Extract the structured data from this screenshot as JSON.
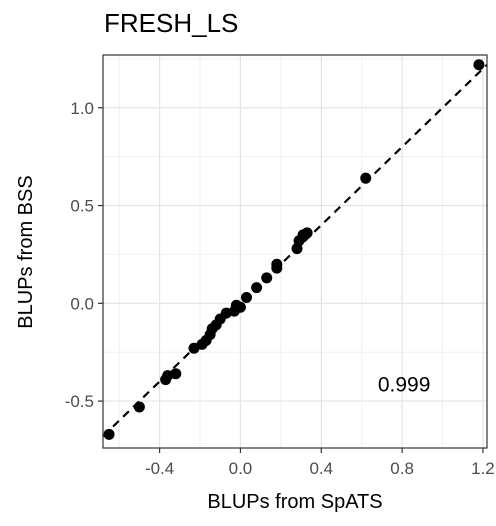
{
  "chart_data": {
    "type": "scatter",
    "title": "FRESH_LS",
    "xlabel": "BLUPs from SpATS",
    "ylabel": "BLUPs from BSS",
    "xlim": [
      -0.68,
      1.22
    ],
    "ylim": [
      -0.74,
      1.27
    ],
    "xticks": [
      -0.4,
      0.0,
      0.4,
      0.8,
      1.2
    ],
    "xtick_labels": [
      "-0.4",
      "0.0",
      "0.4",
      "0.8",
      "1.2"
    ],
    "yticks": [
      -0.5,
      0.0,
      0.5,
      1.0
    ],
    "ytick_labels": [
      "-0.5",
      "0.0",
      "0.5",
      "1.0"
    ],
    "grid": true,
    "reference_line": {
      "style": "dashed",
      "slope": 1,
      "intercept": 0
    },
    "annotation": {
      "text": "0.999",
      "x": 0.81,
      "y": -0.45
    },
    "points": [
      {
        "x": -0.65,
        "y": -0.67
      },
      {
        "x": -0.5,
        "y": -0.53
      },
      {
        "x": -0.37,
        "y": -0.39
      },
      {
        "x": -0.36,
        "y": -0.37
      },
      {
        "x": -0.32,
        "y": -0.36
      },
      {
        "x": -0.23,
        "y": -0.23
      },
      {
        "x": -0.19,
        "y": -0.21
      },
      {
        "x": -0.17,
        "y": -0.19
      },
      {
        "x": -0.15,
        "y": -0.16
      },
      {
        "x": -0.14,
        "y": -0.13
      },
      {
        "x": -0.12,
        "y": -0.11
      },
      {
        "x": -0.1,
        "y": -0.08
      },
      {
        "x": -0.07,
        "y": -0.05
      },
      {
        "x": -0.03,
        "y": -0.04
      },
      {
        "x": -0.02,
        "y": -0.01
      },
      {
        "x": 0.0,
        "y": -0.02
      },
      {
        "x": 0.03,
        "y": 0.03
      },
      {
        "x": 0.08,
        "y": 0.08
      },
      {
        "x": 0.13,
        "y": 0.13
      },
      {
        "x": 0.18,
        "y": 0.18
      },
      {
        "x": 0.18,
        "y": 0.2
      },
      {
        "x": 0.28,
        "y": 0.28
      },
      {
        "x": 0.29,
        "y": 0.32
      },
      {
        "x": 0.31,
        "y": 0.35
      },
      {
        "x": 0.33,
        "y": 0.36
      },
      {
        "x": 0.62,
        "y": 0.64
      },
      {
        "x": 1.18,
        "y": 1.22
      }
    ]
  }
}
